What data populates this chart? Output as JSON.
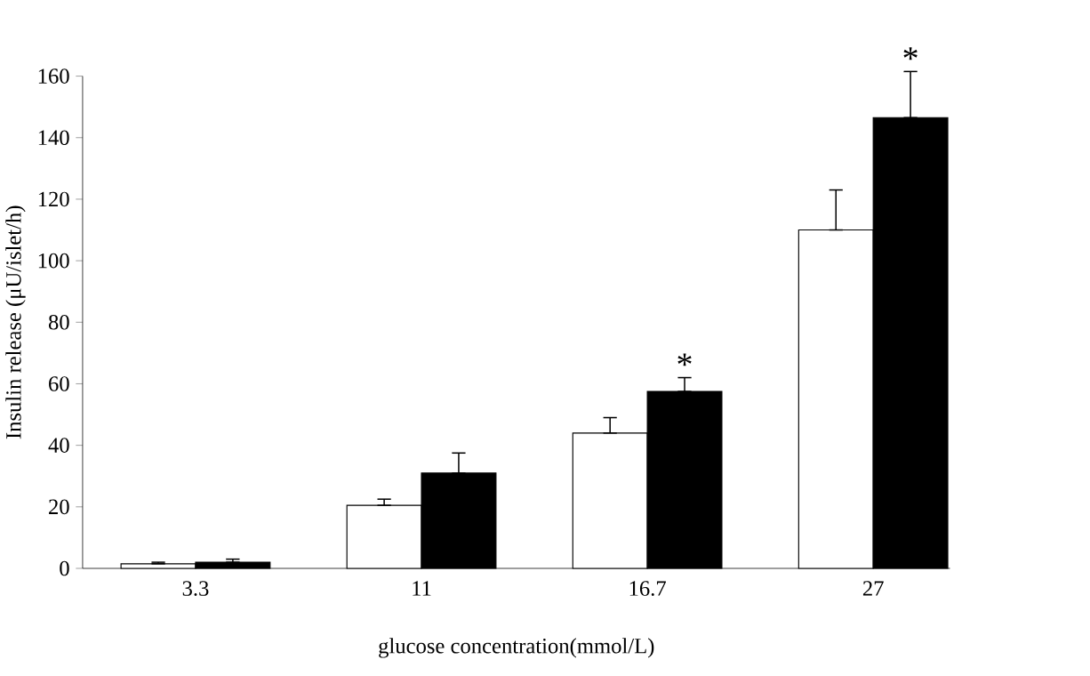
{
  "chart_data": {
    "type": "bar",
    "xlabel": "glucose concentration(mmol/L)",
    "ylabel": "Insulin release (μU/islet/h)",
    "categories": [
      "3.3",
      "11",
      "16.7",
      "27"
    ],
    "series": [
      {
        "color": "#ffffff",
        "values": [
          1.5,
          20.5,
          44,
          110
        ],
        "errors": [
          [
            1.5,
            2
          ],
          [
            20.5,
            22.5
          ],
          [
            44,
            49
          ],
          [
            110,
            123
          ]
        ]
      },
      {
        "color": "#000000",
        "values": [
          2,
          31,
          57.5,
          146.5
        ],
        "errors": [
          [
            2,
            3
          ],
          [
            31,
            37.5
          ],
          [
            57.5,
            62
          ],
          [
            146.5,
            161.5
          ]
        ]
      }
    ],
    "ylim": [
      0,
      160
    ],
    "yticks": [
      0,
      20,
      40,
      60,
      80,
      100,
      120,
      140,
      160
    ],
    "grid": false,
    "annotations": [
      "*",
      "*"
    ]
  }
}
